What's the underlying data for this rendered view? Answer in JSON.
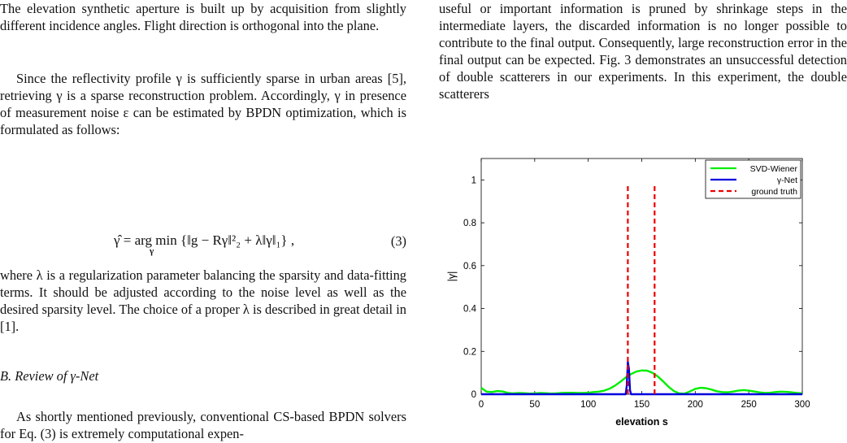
{
  "left": {
    "p_top": "The elevation synthetic aperture is built up by acquisition from slightly different incidence angles. Flight direction is orthogonal into the plane.",
    "p_sparse": "Since the reflectivity profile γ is sufficiently sparse in urban areas [5], retrieving γ is a sparse reconstruction problem. Accordingly, γ in presence of measurement noise ε can be estimated by BPDN optimization, which is formulated as follows:",
    "equation": "γ̂ = arg min {‖g − Rγ‖²₂ + λ‖γ‖₁} ,",
    "equation_under": "γ",
    "equation_number": "(3)",
    "p_lambda": "where λ is a regularization parameter balancing the sparsity and data-fitting terms. It should be adjusted according to the noise level as well as the desired sparsity level. The choice of a proper λ is described in great detail in [1].",
    "section_title": "B. Review of γ-Net",
    "p_review": "As shortly mentioned previously, conventional CS-based BPDN solvers for Eq. (3) is extremely computational expen-"
  },
  "right": {
    "p_top": "useful or important information is pruned by shrinkage steps in the intermediate layers, the discarded information is no longer possible to contribute to the final output. Consequently, large reconstruction error in the final output can be expected. Fig. 3 demonstrates an unsuccessful detection of double scatterers in our experiments. In this experiment, the double scatterers"
  },
  "chart_data": {
    "type": "line",
    "title": "",
    "xlabel": "elevation s",
    "ylabel": "|γ|",
    "xlim": [
      0,
      300
    ],
    "ylim": [
      0,
      1.1
    ],
    "xticks": [
      0,
      50,
      100,
      150,
      200,
      250,
      300
    ],
    "yticks": [
      0,
      0.2,
      0.4,
      0.6,
      0.8,
      1
    ],
    "ytick_labels": [
      "0",
      "0.2",
      "0.4",
      "0.6",
      "0.8",
      "1"
    ],
    "legend_position": "top-right",
    "grid": false,
    "series": [
      {
        "name": "SVD-Wiener",
        "color": "#00ee00",
        "style": "solid",
        "x": [
          0,
          5,
          10,
          15,
          20,
          25,
          30,
          35,
          40,
          45,
          50,
          55,
          60,
          65,
          70,
          75,
          80,
          85,
          90,
          95,
          100,
          105,
          110,
          115,
          120,
          125,
          130,
          135,
          140,
          145,
          150,
          155,
          160,
          165,
          170,
          175,
          180,
          185,
          190,
          195,
          200,
          205,
          210,
          215,
          220,
          225,
          230,
          235,
          240,
          245,
          250,
          255,
          260,
          265,
          270,
          275,
          280,
          285,
          290,
          295,
          300
        ],
        "y": [
          0.03,
          0.012,
          0.01,
          0.015,
          0.013,
          0.006,
          0.004,
          0.006,
          0.005,
          0.003,
          0.004,
          0.006,
          0.005,
          0.003,
          0.004,
          0.006,
          0.007,
          0.007,
          0.006,
          0.006,
          0.007,
          0.01,
          0.012,
          0.017,
          0.026,
          0.04,
          0.058,
          0.078,
          0.094,
          0.106,
          0.111,
          0.11,
          0.1,
          0.083,
          0.06,
          0.035,
          0.015,
          0.004,
          0.003,
          0.013,
          0.025,
          0.03,
          0.028,
          0.022,
          0.014,
          0.01,
          0.009,
          0.012,
          0.017,
          0.019,
          0.017,
          0.013,
          0.009,
          0.006,
          0.007,
          0.01,
          0.012,
          0.011,
          0.009,
          0.006,
          0.004
        ]
      },
      {
        "name": "γ-Net",
        "color": "#0000dd",
        "style": "solid",
        "x": [
          0,
          135,
          136,
          137,
          138,
          139,
          140,
          141,
          300
        ],
        "y": [
          0,
          0,
          0.04,
          0.15,
          0.12,
          0.02,
          0,
          0,
          0
        ]
      },
      {
        "name": "ground truth",
        "color": "#ee0000",
        "style": "dashed",
        "x": [
          137,
          137,
          162,
          162
        ],
        "y": [
          0,
          0.98,
          0,
          0.98
        ]
      }
    ]
  }
}
